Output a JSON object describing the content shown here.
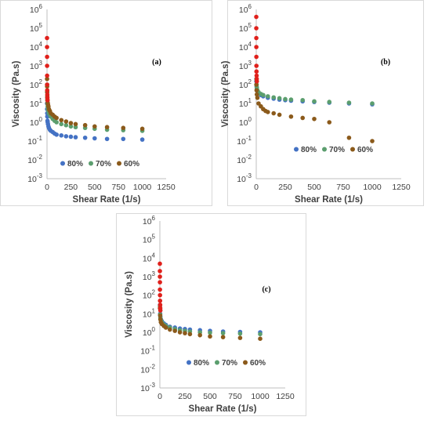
{
  "chart_data": [
    {
      "type": "scatter",
      "label": "(a)",
      "xlabel": "Shear Rate (1/s)",
      "ylabel": "Viscosity (Pa.s)",
      "xlim": [
        0,
        1250
      ],
      "ylim_log10": [
        -3,
        6
      ],
      "xticks": [
        "0",
        "250",
        "500",
        "750",
        "1000",
        "1250"
      ],
      "yticks_exp": [
        "-3",
        "-2",
        "-1",
        "0",
        "1",
        "2",
        "3",
        "4",
        "5",
        "6"
      ],
      "ytick_base": "10",
      "legend_position": "bottom-left",
      "series": [
        {
          "name": "80%",
          "color": "#4472c4",
          "x": [
            0.5,
            1,
            2,
            3,
            5,
            7,
            10,
            15,
            20,
            30,
            40,
            60,
            80,
            100,
            150,
            200,
            250,
            300,
            400,
            500,
            630,
            800,
            1000
          ],
          "y": [
            10,
            5,
            3,
            2,
            1.2,
            1,
            0.8,
            0.6,
            0.5,
            0.4,
            0.35,
            0.3,
            0.25,
            0.22,
            0.2,
            0.18,
            0.17,
            0.16,
            0.15,
            0.14,
            0.13,
            0.13,
            0.12
          ]
        },
        {
          "name": "70%",
          "color": "#5b9e6e",
          "x": [
            0.5,
            1,
            2,
            3,
            5,
            7,
            10,
            15,
            20,
            30,
            40,
            60,
            80,
            100,
            150,
            200,
            250,
            300,
            400,
            500,
            630,
            800,
            1000
          ],
          "y": [
            100,
            40,
            20,
            15,
            10,
            7,
            5,
            4,
            3,
            2.5,
            2,
            1.5,
            1.2,
            1,
            0.8,
            0.7,
            0.6,
            0.55,
            0.5,
            0.45,
            0.4,
            0.38,
            0.35
          ]
        },
        {
          "name": "60%",
          "color": "#8b5a1b",
          "x": [
            0.5,
            1,
            2,
            3,
            5,
            7,
            10,
            15,
            20,
            30,
            40,
            60,
            80,
            100,
            150,
            200,
            250,
            300,
            400,
            500,
            630,
            800,
            1000
          ],
          "y": [
            200,
            80,
            40,
            25,
            15,
            11,
            9,
            7,
            5,
            4,
            3,
            2.5,
            2,
            1.7,
            1.3,
            1.1,
            0.9,
            0.8,
            0.7,
            0.6,
            0.55,
            0.5,
            0.45
          ]
        },
        {
          "name": "",
          "color": "#e0201b",
          "x": [
            0.2,
            0.4,
            0.6,
            0.8,
            1,
            1.5,
            2,
            3,
            4,
            5
          ],
          "y": [
            30000,
            10000,
            3000,
            1000,
            300,
            100,
            50,
            30,
            20,
            15
          ]
        }
      ]
    },
    {
      "type": "scatter",
      "label": "(b)",
      "xlabel": "Shear Rate (1/s)",
      "ylabel": "Viscosity (Pa.s)",
      "xlim": [
        0,
        1250
      ],
      "ylim_log10": [
        -3,
        6
      ],
      "xticks": [
        "0",
        "250",
        "500",
        "750",
        "1000",
        "1250"
      ],
      "yticks_exp": [
        "-3",
        "-2",
        "-1",
        "0",
        "1",
        "2",
        "3",
        "4",
        "5",
        "6"
      ],
      "ytick_base": "10",
      "legend_position": "bottom-left",
      "series": [
        {
          "name": "80%",
          "color": "#4472c4",
          "x": [
            1,
            3,
            5,
            10,
            20,
            40,
            60,
            100,
            150,
            200,
            250,
            300,
            400,
            500,
            630,
            800,
            1000
          ],
          "y": [
            150,
            80,
            60,
            45,
            35,
            28,
            24,
            20,
            18,
            16,
            15,
            14,
            13,
            12,
            11,
            10,
            9
          ]
        },
        {
          "name": "70%",
          "color": "#5b9e6e",
          "x": [
            1,
            3,
            5,
            10,
            20,
            40,
            60,
            100,
            150,
            200,
            250,
            300,
            400,
            500,
            630,
            800,
            1000
          ],
          "y": [
            200,
            100,
            70,
            50,
            40,
            32,
            28,
            24,
            21,
            19,
            17,
            16,
            15,
            13,
            12,
            11,
            10
          ]
        },
        {
          "name": "60%",
          "color": "#8b5a1b",
          "x": [
            1,
            3,
            5,
            10,
            20,
            40,
            60,
            80,
            100,
            150,
            200,
            300,
            400,
            500,
            630,
            800,
            1000
          ],
          "y": [
            100,
            50,
            30,
            20,
            10,
            7,
            5,
            4,
            3.5,
            3,
            2.5,
            2,
            1.7,
            1.5,
            1,
            0.15,
            0.1
          ]
        },
        {
          "name": "",
          "color": "#e0201b",
          "x": [
            0.2,
            0.4,
            0.6,
            0.8,
            1,
            1.5,
            2,
            3,
            4,
            5
          ],
          "y": [
            400000,
            100000,
            30000,
            10000,
            3000,
            1000,
            500,
            300,
            200,
            150
          ]
        }
      ]
    },
    {
      "type": "scatter",
      "label": "(c)",
      "xlabel": "Shear Rate (1/s)",
      "ylabel": "Viscosity (Pa.s)",
      "xlim": [
        0,
        1250
      ],
      "ylim_log10": [
        -3,
        6
      ],
      "xticks": [
        "0",
        "250",
        "500",
        "750",
        "1000",
        "1250"
      ],
      "yticks_exp": [
        "-3",
        "-2",
        "-1",
        "0",
        "1",
        "2",
        "3",
        "4",
        "5",
        "6"
      ],
      "ytick_base": "10",
      "legend_position": "bottom-center",
      "series": [
        {
          "name": "80%",
          "color": "#4472c4",
          "x": [
            1,
            3,
            5,
            10,
            20,
            40,
            60,
            100,
            150,
            200,
            250,
            300,
            400,
            500,
            630,
            800,
            1000
          ],
          "y": [
            30,
            10,
            7,
            5,
            4,
            3,
            2.5,
            2,
            1.8,
            1.6,
            1.5,
            1.4,
            1.3,
            1.2,
            1.1,
            1.05,
            1
          ]
        },
        {
          "name": "70%",
          "color": "#5b9e6e",
          "x": [
            1,
            3,
            5,
            10,
            20,
            40,
            60,
            100,
            150,
            200,
            250,
            300,
            400,
            500,
            630,
            800,
            1000
          ],
          "y": [
            25,
            9,
            6,
            4.5,
            3.5,
            2.6,
            2.2,
            1.8,
            1.5,
            1.3,
            1.2,
            1.1,
            1,
            0.95,
            0.9,
            0.85,
            0.8
          ]
        },
        {
          "name": "60%",
          "color": "#8b5a1b",
          "x": [
            1,
            3,
            5,
            10,
            20,
            40,
            60,
            100,
            150,
            200,
            250,
            300,
            400,
            500,
            630,
            800,
            1000
          ],
          "y": [
            20,
            8,
            5,
            3.5,
            2.8,
            2.2,
            1.8,
            1.4,
            1.2,
            1,
            0.9,
            0.8,
            0.7,
            0.6,
            0.55,
            0.5,
            0.45
          ]
        },
        {
          "name": "",
          "color": "#e0201b",
          "x": [
            0.2,
            0.4,
            0.6,
            0.8,
            1,
            1.5,
            2,
            3,
            4,
            5
          ],
          "y": [
            5000,
            2000,
            1000,
            500,
            200,
            100,
            50,
            30,
            20,
            15
          ]
        }
      ]
    }
  ]
}
